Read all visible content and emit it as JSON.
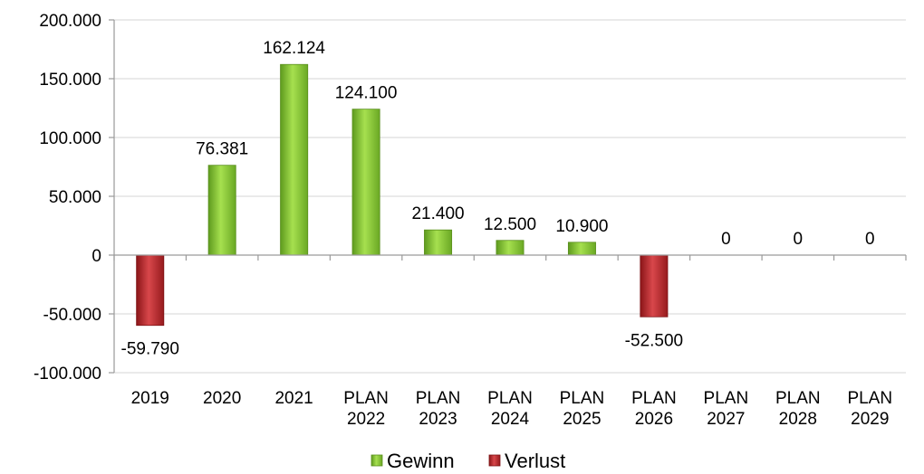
{
  "chart_data": {
    "type": "bar",
    "categories": [
      [
        "2019"
      ],
      [
        "2020"
      ],
      [
        "2021"
      ],
      [
        "PLAN",
        "2022"
      ],
      [
        "PLAN",
        "2023"
      ],
      [
        "PLAN",
        "2024"
      ],
      [
        "PLAN",
        "2025"
      ],
      [
        "PLAN",
        "2026"
      ],
      [
        "PLAN",
        "2027"
      ],
      [
        "PLAN",
        "2028"
      ],
      [
        "PLAN",
        "2029"
      ]
    ],
    "values": [
      -59790,
      76381,
      162124,
      124100,
      21400,
      12500,
      10900,
      -52500,
      0,
      0,
      0
    ],
    "value_labels": [
      "-59.790",
      "76.381",
      "162.124",
      "124.100",
      "21.400",
      "12.500",
      "10.900",
      "-52.500",
      "0",
      "0",
      "0"
    ],
    "ylim": [
      -100000,
      200000
    ],
    "yticks": [
      200000,
      150000,
      100000,
      50000,
      0,
      -50000,
      -100000
    ],
    "ytick_labels": [
      "200.000",
      "150.000",
      "100.000",
      "50.000",
      "0",
      "-50.000",
      "-100.000"
    ],
    "series": [
      {
        "name": "Gewinn",
        "color": "#8fcf3c",
        "rule": "positive"
      },
      {
        "name": "Verlust",
        "color": "#c0282d",
        "rule": "negative"
      }
    ],
    "legend_position": "bottom",
    "grid": true
  }
}
